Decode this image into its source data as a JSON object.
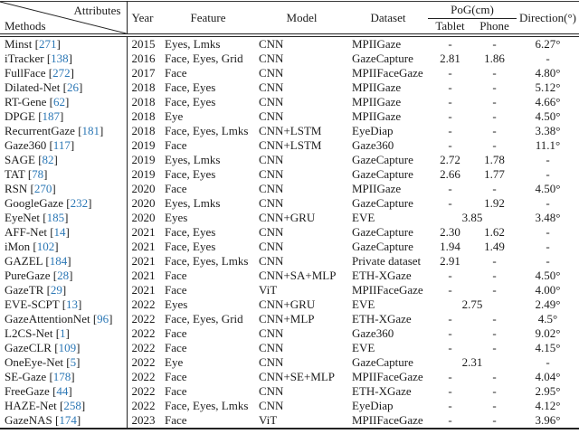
{
  "colors": {
    "link": "#2b77b5",
    "text": "#1c1c1c",
    "rule": "#222222"
  },
  "header": {
    "corner": {
      "top": "Attributes",
      "bottom": "Methods"
    },
    "columns": {
      "year": "Year",
      "feature": "Feature",
      "model": "Model",
      "dataset": "Dataset",
      "pog": "PoG(cm)",
      "tablet": "Tablet",
      "phone": "Phone",
      "direction": "Direction(°)"
    }
  },
  "rows": [
    {
      "method": "Minst",
      "ref": "271",
      "year": "2015",
      "feature": "Eyes, Lmks",
      "model": "CNN",
      "dataset": "MPIIGaze",
      "tablet": "-",
      "phone": "-",
      "direction": "6.27°"
    },
    {
      "method": "iTracker",
      "ref": "138",
      "year": "2016",
      "feature": "Face, Eyes, Grid",
      "model": "CNN",
      "dataset": "GazeCapture",
      "tablet": "2.81",
      "phone": "1.86",
      "direction": "-"
    },
    {
      "method": "FullFace",
      "ref": "272",
      "year": "2017",
      "feature": "Face",
      "model": "CNN",
      "dataset": "MPIIFaceGaze",
      "tablet": "-",
      "phone": "-",
      "direction": "4.80°"
    },
    {
      "method": "Dilated-Net",
      "ref": "26",
      "year": "2018",
      "feature": "Face, Eyes",
      "model": "CNN",
      "dataset": "MPIIGaze",
      "tablet": "-",
      "phone": "-",
      "direction": "5.12°"
    },
    {
      "method": "RT-Gene",
      "ref": "62",
      "year": "2018",
      "feature": "Face, Eyes",
      "model": "CNN",
      "dataset": "MPIIGaze",
      "tablet": "-",
      "phone": "-",
      "direction": "4.66°"
    },
    {
      "method": "DPGE",
      "ref": "187",
      "year": "2018",
      "feature": "Eye",
      "model": "CNN",
      "dataset": "MPIIGaze",
      "tablet": "-",
      "phone": "-",
      "direction": "4.50°"
    },
    {
      "method": "RecurrentGaze",
      "ref": "181",
      "year": "2018",
      "feature": "Face, Eyes, Lmks",
      "model": "CNN+LSTM",
      "dataset": "EyeDiap",
      "tablet": "-",
      "phone": "-",
      "direction": "3.38°"
    },
    {
      "method": "Gaze360",
      "ref": "117",
      "year": "2019",
      "feature": "Face",
      "model": "CNN+LSTM",
      "dataset": "Gaze360",
      "tablet": "-",
      "phone": "-",
      "direction": "11.1°"
    },
    {
      "method": "SAGE",
      "ref": "82",
      "year": "2019",
      "feature": "Eyes, Lmks",
      "model": "CNN",
      "dataset": "GazeCapture",
      "tablet": "2.72",
      "phone": "1.78",
      "direction": "-"
    },
    {
      "method": "TAT",
      "ref": "78",
      "year": "2019",
      "feature": "Face, Eyes",
      "model": "CNN",
      "dataset": "GazeCapture",
      "tablet": "2.66",
      "phone": "1.77",
      "direction": "-"
    },
    {
      "method": "RSN",
      "ref": "270",
      "year": "2020",
      "feature": "Face",
      "model": "CNN",
      "dataset": "MPIIGaze",
      "tablet": "-",
      "phone": "-",
      "direction": "4.50°"
    },
    {
      "method": "GoogleGaze",
      "ref": "232",
      "year": "2020",
      "feature": "Eyes, Lmks",
      "model": "CNN",
      "dataset": "GazeCapture",
      "tablet": "-",
      "phone": "1.92",
      "direction": "-"
    },
    {
      "method": "EyeNet",
      "ref": "185",
      "year": "2020",
      "feature": "Eyes",
      "model": "CNN+GRU",
      "dataset": "EVE",
      "pog_span": "3.85",
      "direction": "3.48°"
    },
    {
      "method": "AFF-Net",
      "ref": "14",
      "year": "2021",
      "feature": "Face, Eyes",
      "model": "CNN",
      "dataset": "GazeCapture",
      "tablet": "2.30",
      "phone": "1.62",
      "direction": "-"
    },
    {
      "method": "iMon",
      "ref": "102",
      "year": "2021",
      "feature": "Face, Eyes",
      "model": "CNN",
      "dataset": "GazeCapture",
      "tablet": "1.94",
      "phone": "1.49",
      "direction": "-"
    },
    {
      "method": "GAZEL",
      "ref": "184",
      "year": "2021",
      "feature": "Face, Eyes, Lmks",
      "model": "CNN",
      "dataset": "Private dataset",
      "tablet": "2.91",
      "phone": "-",
      "direction": "-"
    },
    {
      "method": "PureGaze",
      "ref": "28",
      "year": "2021",
      "feature": "Face",
      "model": "CNN+SA+MLP",
      "dataset": "ETH-XGaze",
      "tablet": "-",
      "phone": "-",
      "direction": "4.50°"
    },
    {
      "method": "GazeTR",
      "ref": "29",
      "year": "2021",
      "feature": "Face",
      "model": "ViT",
      "dataset": "MPIIFaceGaze",
      "tablet": "-",
      "phone": "-",
      "direction": "4.00°"
    },
    {
      "method": "EVE-SCPT",
      "ref": "13",
      "year": "2022",
      "feature": "Eyes",
      "model": "CNN+GRU",
      "dataset": "EVE",
      "pog_span": "2.75",
      "direction": "2.49°"
    },
    {
      "method": "GazeAttentionNet",
      "ref": "96",
      "year": "2022",
      "feature": "Face, Eyes, Grid",
      "model": "CNN+MLP",
      "dataset": "ETH-XGaze",
      "tablet": "-",
      "phone": "-",
      "direction": "4.5°"
    },
    {
      "method": "L2CS-Net",
      "ref": "1",
      "year": "2022",
      "feature": "Face",
      "model": "CNN",
      "dataset": "Gaze360",
      "tablet": "-",
      "phone": "-",
      "direction": "9.02°"
    },
    {
      "method": "GazeCLR",
      "ref": "109",
      "year": "2022",
      "feature": "Face",
      "model": "CNN",
      "dataset": "EVE",
      "tablet": "-",
      "phone": "-",
      "direction": "4.15°"
    },
    {
      "method": "OneEye-Net",
      "ref": "5",
      "year": "2022",
      "feature": "Eye",
      "model": "CNN",
      "dataset": "GazeCapture",
      "pog_span": "2.31",
      "direction": "-"
    },
    {
      "method": "SE-Gaze",
      "ref": "178",
      "year": "2022",
      "feature": "Face",
      "model": "CNN+SE+MLP",
      "dataset": "MPIIFaceGaze",
      "tablet": "-",
      "phone": "-",
      "direction": "4.04°"
    },
    {
      "method": "FreeGaze",
      "ref": "44",
      "year": "2022",
      "feature": "Face",
      "model": "CNN",
      "dataset": "ETH-XGaze",
      "tablet": "-",
      "phone": "-",
      "direction": "2.95°"
    },
    {
      "method": "HAZE-Net",
      "ref": "258",
      "year": "2022",
      "feature": "Face, Eyes, Lmks",
      "model": "CNN",
      "dataset": "EyeDiap",
      "tablet": "-",
      "phone": "-",
      "direction": "4.12°"
    },
    {
      "method": "GazeNAS",
      "ref": "174",
      "year": "2023",
      "feature": "Face",
      "model": "ViT",
      "dataset": "MPIIFaceGaze",
      "tablet": "-",
      "phone": "-",
      "direction": "3.96°"
    }
  ]
}
